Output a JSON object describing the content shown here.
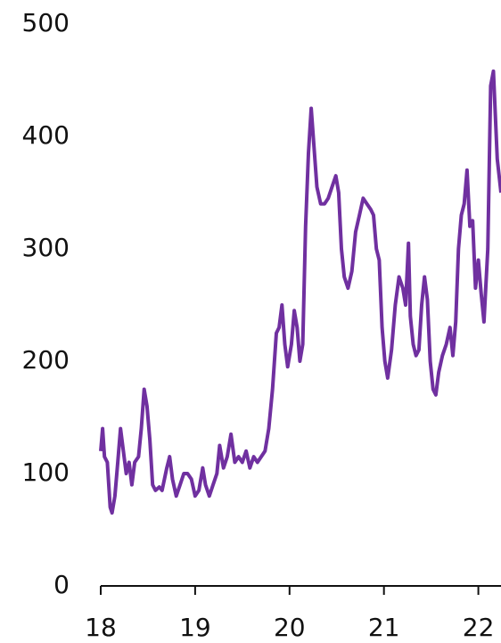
{
  "chart_data": {
    "type": "line",
    "x": [
      18.0,
      18.02,
      18.04,
      18.07,
      18.1,
      18.12,
      18.15,
      18.18,
      18.21,
      18.24,
      18.27,
      18.3,
      18.33,
      18.36,
      18.4,
      18.43,
      18.46,
      18.49,
      18.52,
      18.55,
      18.58,
      18.62,
      18.65,
      18.7,
      18.73,
      18.76,
      18.8,
      18.84,
      18.88,
      18.92,
      18.96,
      19.0,
      19.04,
      19.08,
      19.11,
      19.15,
      19.19,
      19.23,
      19.26,
      19.3,
      19.34,
      19.38,
      19.42,
      19.46,
      19.5,
      19.54,
      19.58,
      19.62,
      19.66,
      19.7,
      19.74,
      19.78,
      19.82,
      19.86,
      19.89,
      19.92,
      19.95,
      19.98,
      20.02,
      20.05,
      20.08,
      20.11,
      20.14,
      20.17,
      20.2,
      20.23,
      20.26,
      20.29,
      20.33,
      20.37,
      20.41,
      20.45,
      20.49,
      20.52,
      20.55,
      20.58,
      20.62,
      20.66,
      20.7,
      20.74,
      20.78,
      20.82,
      20.86,
      20.89,
      20.92,
      20.95,
      20.98,
      21.01,
      21.04,
      21.08,
      21.12,
      21.16,
      21.2,
      21.23,
      21.26,
      21.28,
      21.31,
      21.34,
      21.37,
      21.4,
      21.43,
      21.46,
      21.49,
      21.52,
      21.55,
      21.58,
      21.62,
      21.66,
      21.7,
      21.73,
      21.76,
      21.79,
      21.82,
      21.85,
      21.88,
      21.91,
      21.94,
      21.97,
      22.0,
      22.03,
      22.06,
      22.1,
      22.13,
      22.16,
      22.2,
      22.24
    ],
    "series": [
      {
        "color": "#7030a0",
        "values": [
          120,
          140,
          115,
          110,
          70,
          65,
          80,
          110,
          140,
          120,
          100,
          110,
          90,
          110,
          115,
          140,
          175,
          160,
          130,
          90,
          85,
          88,
          85,
          105,
          115,
          95,
          80,
          90,
          100,
          100,
          95,
          80,
          85,
          105,
          90,
          80,
          90,
          100,
          125,
          105,
          115,
          135,
          110,
          115,
          110,
          120,
          105,
          115,
          110,
          115,
          120,
          140,
          175,
          225,
          230,
          250,
          215,
          195,
          215,
          245,
          230,
          200,
          215,
          320,
          385,
          425,
          390,
          355,
          340,
          340,
          345,
          355,
          365,
          350,
          300,
          275,
          265,
          280,
          315,
          330,
          345,
          340,
          335,
          330,
          300,
          290,
          230,
          200,
          185,
          210,
          250,
          275,
          265,
          250,
          305,
          240,
          215,
          205,
          210,
          250,
          275,
          255,
          200,
          175,
          170,
          190,
          205,
          215,
          230,
          205,
          235,
          300,
          330,
          340,
          370,
          320,
          325,
          265,
          290,
          260,
          235,
          300,
          445,
          458,
          380,
          350
        ]
      }
    ],
    "xlim": [
      18,
      22.24
    ],
    "xticks": [
      18,
      19,
      20,
      21,
      22
    ],
    "ylim": [
      0,
      500
    ],
    "yticks": [
      0,
      100,
      200,
      300,
      400,
      500
    ]
  }
}
